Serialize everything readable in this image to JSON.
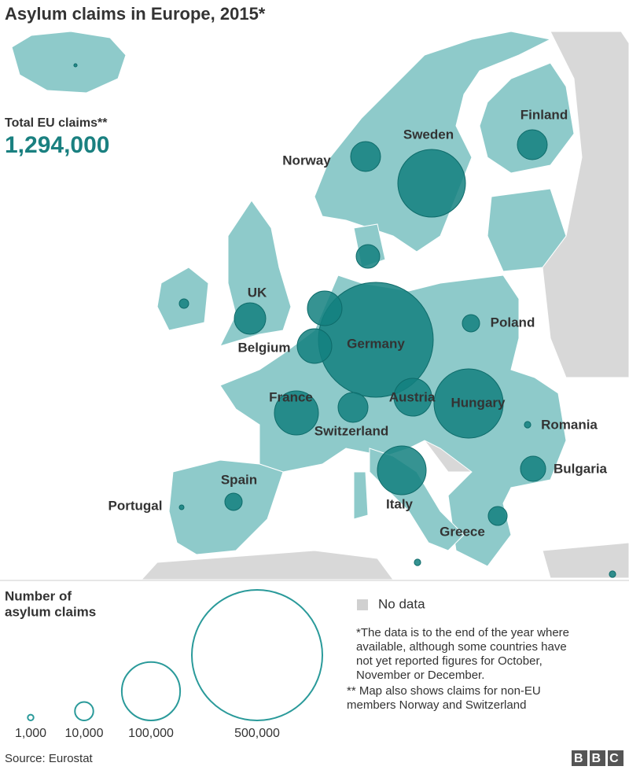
{
  "title": "Asylum claims in Europe, 2015*",
  "total": {
    "label": "Total EU claims**",
    "value": "1,294,000"
  },
  "countries": [
    {
      "label": "Germany",
      "claims": 387000
    },
    {
      "label": "Hungary",
      "claims": 140500
    },
    {
      "label": "Sweden",
      "claims": 134200
    },
    {
      "label": "Italy",
      "claims": 69700
    },
    {
      "label": "France",
      "claims": 56900
    },
    {
      "label": "Austria",
      "claims": 41800
    },
    {
      "label": null,
      "claims": 35100
    },
    {
      "label": "Belgium",
      "claims": 35100
    },
    {
      "label": "UK",
      "claims": 29000
    },
    {
      "label": "Switzerland",
      "claims": 26200
    },
    {
      "label": "Norway",
      "claims": 26200
    },
    {
      "label": "Finland",
      "claims": 26200
    },
    {
      "label": "Bulgaria",
      "claims": 18600
    },
    {
      "label": null,
      "claims": 16300
    },
    {
      "label": "Greece",
      "claims": 10500
    },
    {
      "label": "Poland",
      "claims": 8800
    },
    {
      "label": "Spain",
      "claims": 8800
    },
    {
      "label": null,
      "claims": 2600
    },
    {
      "label": "Romania",
      "claims": 1200
    },
    {
      "label": "Portugal",
      "claims": 650
    },
    {
      "label": null,
      "claims": 1200
    },
    {
      "label": null,
      "claims": 1200
    },
    {
      "label": null,
      "claims": 300
    }
  ],
  "legend": {
    "title_lines": [
      "Number of",
      "asylum claims"
    ],
    "sizes": [
      {
        "value": 1000,
        "label": "1,000"
      },
      {
        "value": 10000,
        "label": "10,000"
      },
      {
        "value": 100000,
        "label": "100,000"
      },
      {
        "value": 500000,
        "label": "500,000"
      }
    ],
    "no_data": "No data"
  },
  "notes": [
    [
      "*The data is to the end of the year where",
      "available, although some countries have",
      "not yet reported figures for October,",
      "November or December."
    ],
    [
      "** Map also shows claims for non-EU",
      "members Norway and Switzerland"
    ]
  ],
  "source": "Source: Eurostat",
  "logo": "BBC"
}
